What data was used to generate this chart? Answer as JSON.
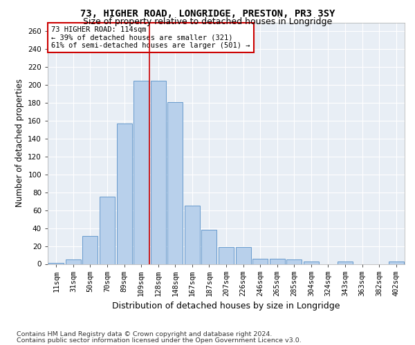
{
  "title": "73, HIGHER ROAD, LONGRIDGE, PRESTON, PR3 3SY",
  "subtitle": "Size of property relative to detached houses in Longridge",
  "xlabel": "Distribution of detached houses by size in Longridge",
  "ylabel": "Number of detached properties",
  "categories": [
    "11sqm",
    "31sqm",
    "50sqm",
    "70sqm",
    "89sqm",
    "109sqm",
    "128sqm",
    "148sqm",
    "167sqm",
    "187sqm",
    "207sqm",
    "226sqm",
    "246sqm",
    "265sqm",
    "285sqm",
    "304sqm",
    "324sqm",
    "343sqm",
    "363sqm",
    "382sqm",
    "402sqm"
  ],
  "values": [
    1,
    5,
    31,
    75,
    157,
    205,
    205,
    181,
    65,
    38,
    19,
    19,
    6,
    6,
    5,
    3,
    0,
    3,
    0,
    0,
    3
  ],
  "bar_color": "#b8d0eb",
  "bar_edge_color": "#6699cc",
  "vline_color": "#cc0000",
  "vline_pos": 5.5,
  "annotation_text": "73 HIGHER ROAD: 114sqm\n← 39% of detached houses are smaller (321)\n61% of semi-detached houses are larger (501) →",
  "annotation_box_color": "#ffffff",
  "annotation_box_edge": "#cc0000",
  "ylim": [
    0,
    270
  ],
  "yticks": [
    0,
    20,
    40,
    60,
    80,
    100,
    120,
    140,
    160,
    180,
    200,
    220,
    240,
    260
  ],
  "footer1": "Contains HM Land Registry data © Crown copyright and database right 2024.",
  "footer2": "Contains public sector information licensed under the Open Government Licence v3.0.",
  "plot_bg_color": "#e8eef5",
  "title_fontsize": 10,
  "subtitle_fontsize": 9,
  "xlabel_fontsize": 9,
  "ylabel_fontsize": 8.5,
  "tick_fontsize": 7.5,
  "annot_fontsize": 7.5,
  "footer_fontsize": 6.8
}
